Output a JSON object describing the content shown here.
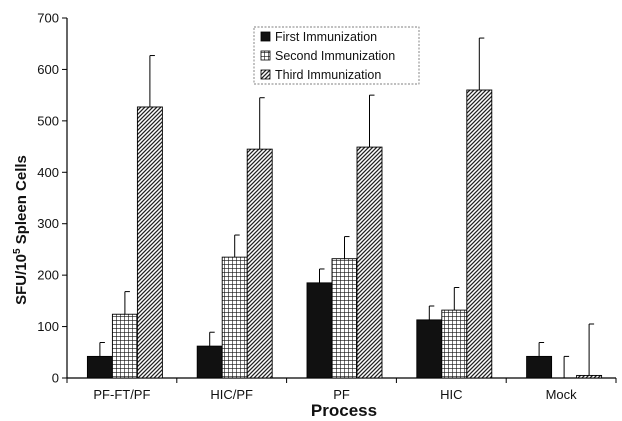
{
  "chart_data": {
    "type": "bar",
    "title": "",
    "xlabel": "Process",
    "ylabel_main": "SFU/10",
    "ylabel_sup": "5",
    "ylabel_tail": " Spleen Cells",
    "ylim": [
      0,
      700
    ],
    "yticks": [
      0,
      100,
      200,
      300,
      400,
      500,
      600,
      700
    ],
    "grid": false,
    "legend_position": "top-center",
    "categories": [
      "PF-FT/PF",
      "HIC/PF",
      "PF",
      "HIC",
      "Mock"
    ],
    "series": [
      {
        "name": "First Immunization",
        "pattern": "solid",
        "values": [
          42,
          62,
          185,
          113,
          42
        ],
        "errors": [
          27,
          27,
          27,
          27,
          27
        ]
      },
      {
        "name": "Second Immunization",
        "pattern": "grid",
        "values": [
          124,
          235,
          232,
          132,
          0
        ],
        "errors": [
          44,
          43,
          43,
          44,
          42
        ]
      },
      {
        "name": "Third Immunization",
        "pattern": "diagonal",
        "values": [
          527,
          445,
          449,
          560,
          5
        ],
        "errors": [
          100,
          100,
          101,
          101,
          100
        ]
      }
    ],
    "colors": {
      "bar_fill": "#111111",
      "axis": "#000000",
      "background": "#ffffff"
    }
  }
}
